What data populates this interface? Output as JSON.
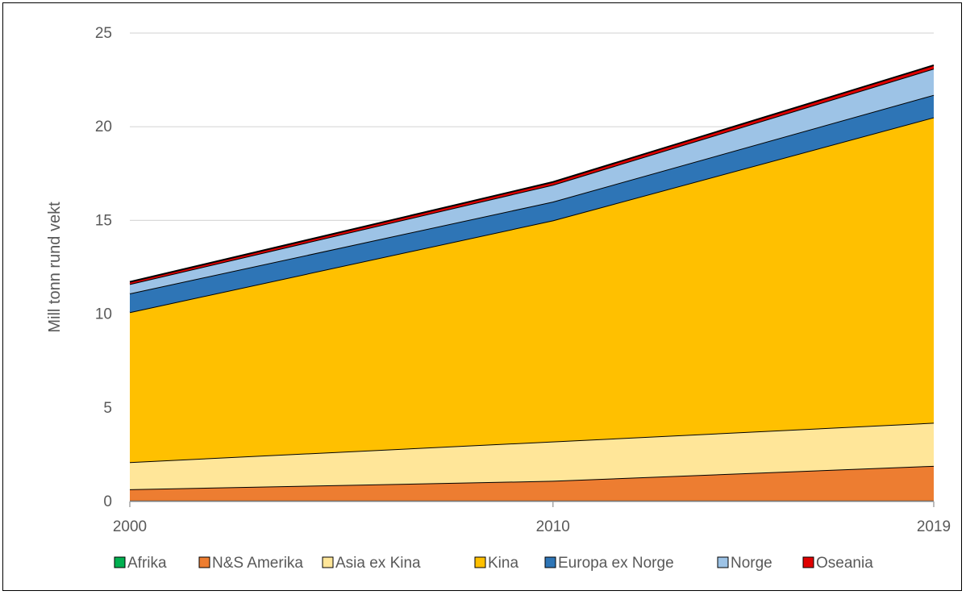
{
  "chart_data": {
    "type": "area",
    "stacked": true,
    "title": "",
    "xlabel": "",
    "ylabel": "Mill tonn rund vekt",
    "x": [
      "2000",
      "2010",
      "2019"
    ],
    "ylim": [
      0,
      25
    ],
    "yticks": [
      "0",
      "5",
      "10",
      "15",
      "20",
      "25"
    ],
    "grid": true,
    "legend_position": "bottom",
    "series": [
      {
        "name": "Afrika",
        "color": "#00B050",
        "values": [
          0.05,
          0.05,
          0.05
        ]
      },
      {
        "name": "N&S Amerika",
        "color": "#ED7D31",
        "values": [
          0.6,
          1.05,
          1.85
        ]
      },
      {
        "name": "Asia ex Kina",
        "color": "#FFE699",
        "values": [
          1.45,
          2.1,
          2.3
        ]
      },
      {
        "name": "Kina",
        "color": "#FFC000",
        "values": [
          8.0,
          11.8,
          16.3
        ]
      },
      {
        "name": "Europa ex Norge",
        "color": "#2E75B6",
        "values": [
          1.0,
          1.0,
          1.2
        ]
      },
      {
        "name": "Norge",
        "color": "#9DC3E6",
        "values": [
          0.5,
          0.9,
          1.4
        ]
      },
      {
        "name": "Oseania",
        "color": "#E00000",
        "values": [
          0.12,
          0.15,
          0.18
        ]
      }
    ]
  }
}
